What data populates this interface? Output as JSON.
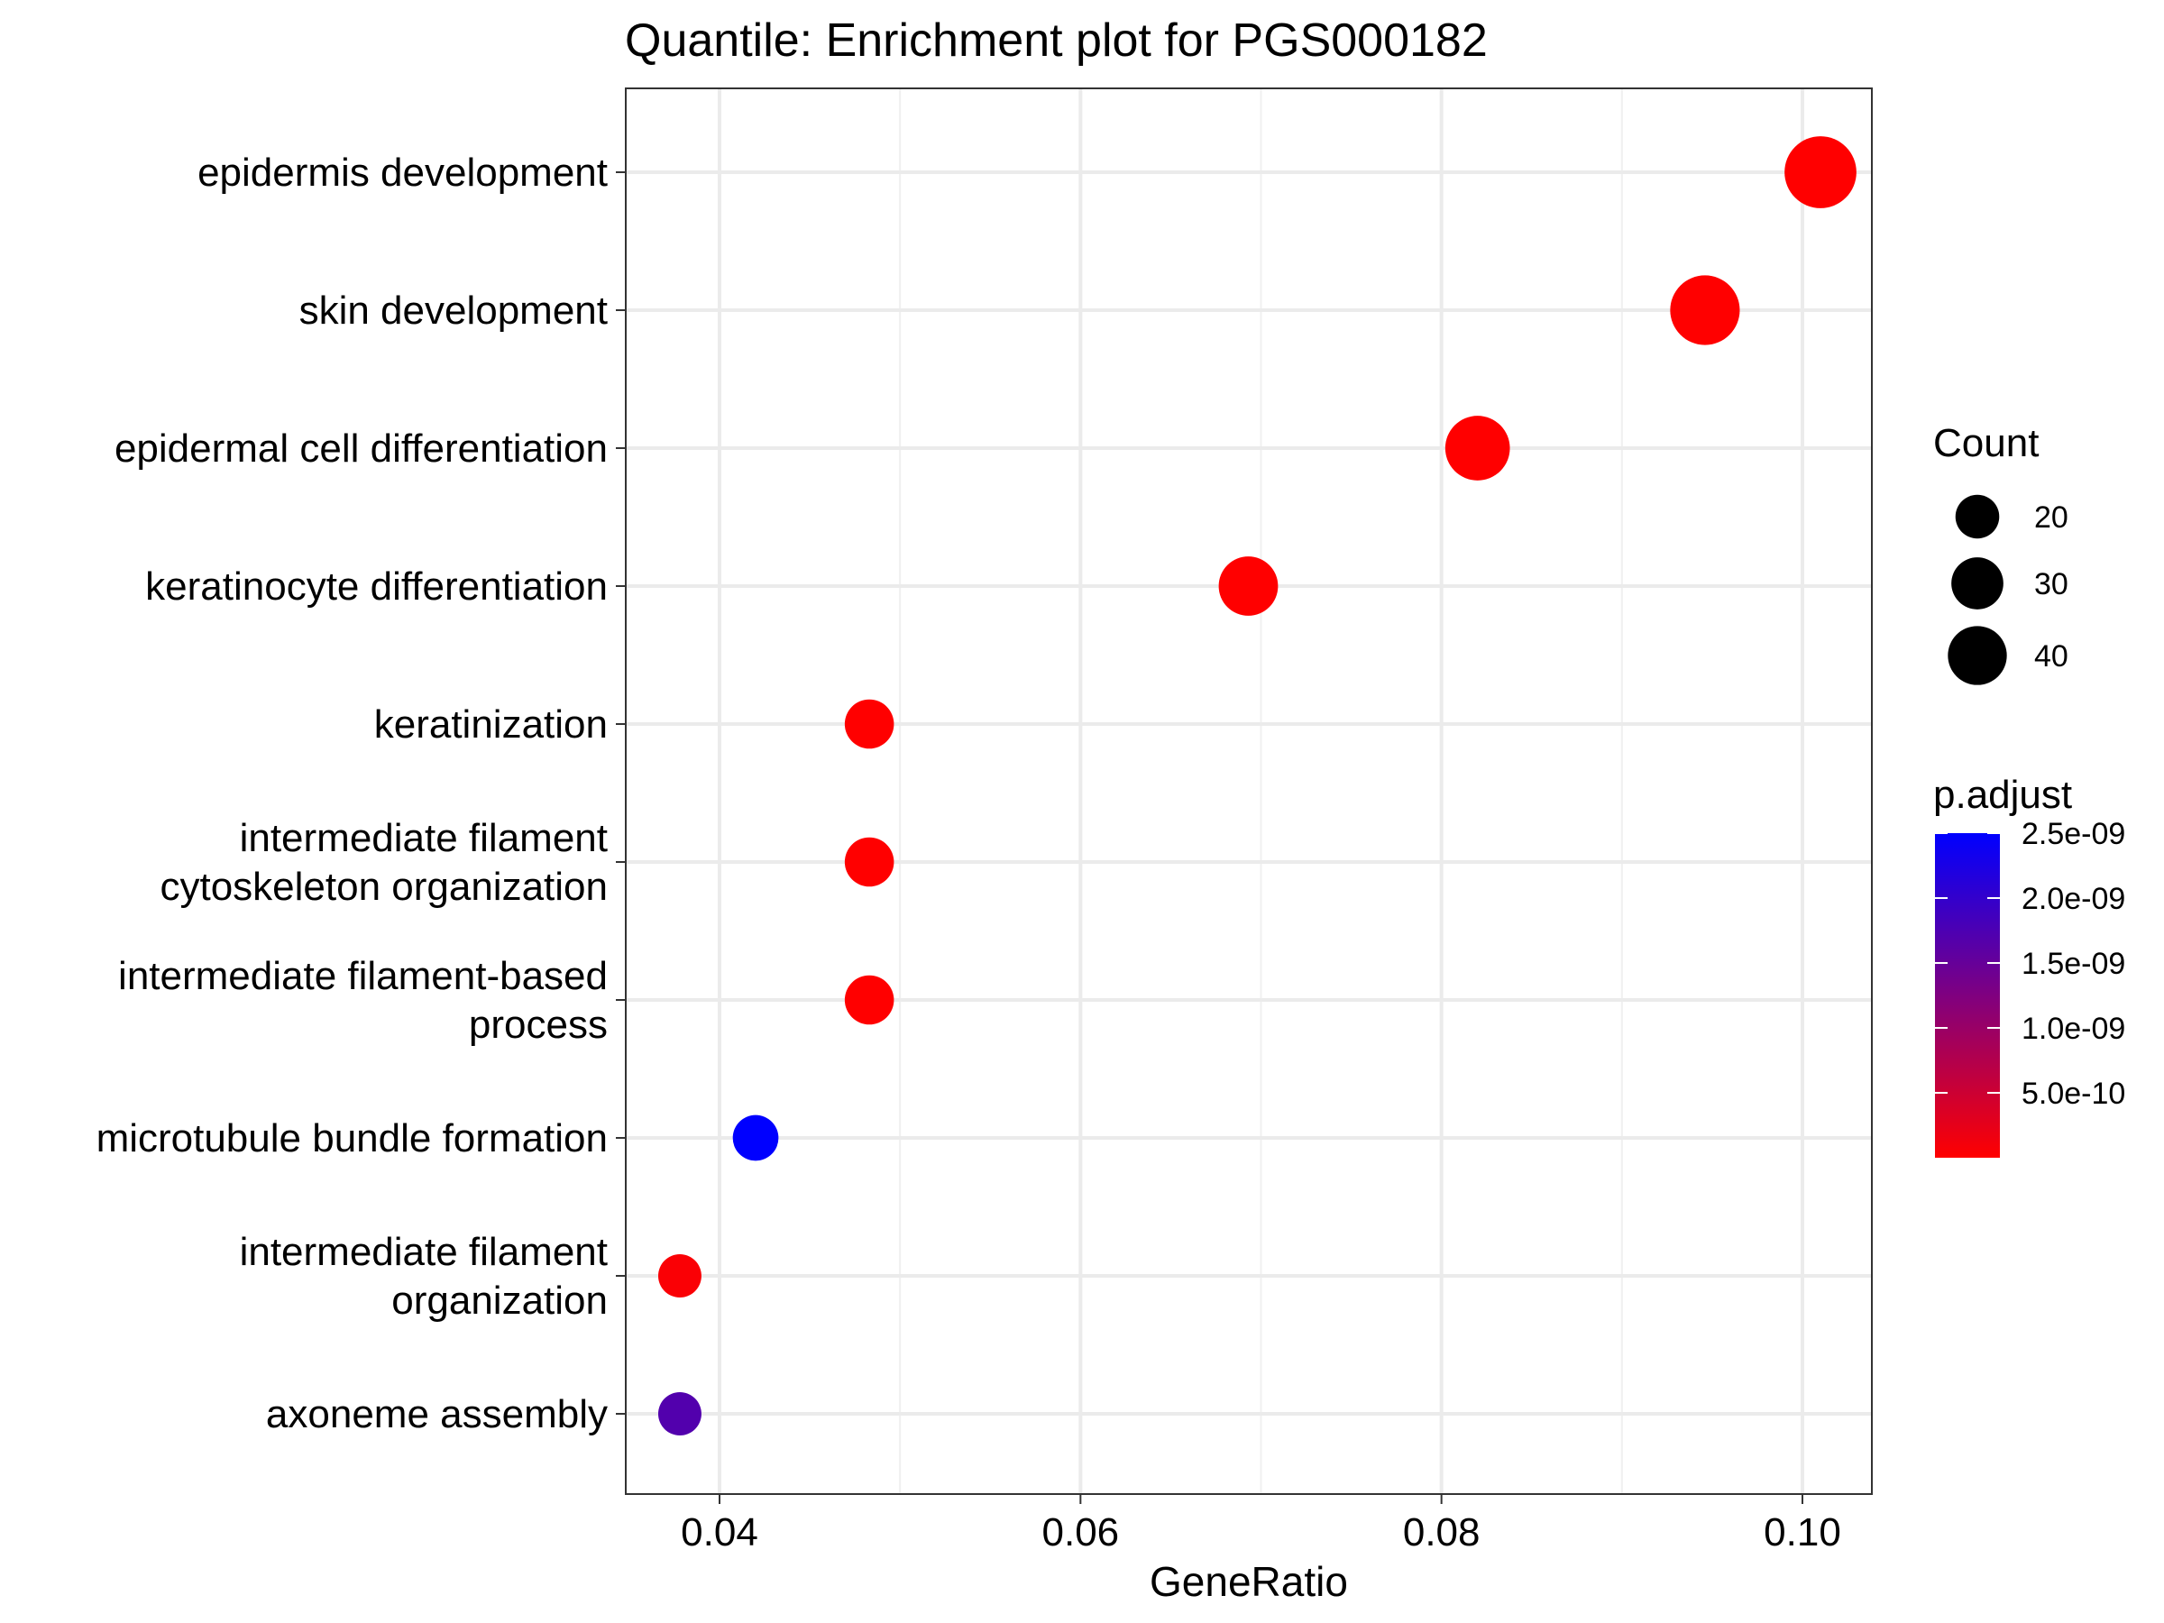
{
  "chart_data": {
    "type": "scatter",
    "title": "Quantile: Enrichment plot for PGS000182",
    "xlabel": "GeneRatio",
    "ylabel": "",
    "xlim": [
      0.035,
      0.1038
    ],
    "xticks": [
      0.04,
      0.06,
      0.08,
      0.1
    ],
    "xtick_labels": [
      "0.04",
      "0.06",
      "0.08",
      "0.10"
    ],
    "grid": true,
    "categories": [
      "epidermis development",
      "skin development",
      "epidermal cell differentiation",
      "keratinocyte differentiation",
      "keratinization",
      "intermediate filament cytoskeleton organization",
      "intermediate filament-based process",
      "microtubule bundle formation",
      "intermediate filament organization",
      "axoneme assembly"
    ],
    "category_lines": [
      [
        "epidermis development"
      ],
      [
        "skin development"
      ],
      [
        "epidermal cell differentiation"
      ],
      [
        "keratinocyte differentiation"
      ],
      [
        "keratinization"
      ],
      [
        "intermediate filament",
        "cytoskeleton organization"
      ],
      [
        "intermediate filament-based",
        "process"
      ],
      [
        "microtubule bundle formation"
      ],
      [
        "intermediate filament",
        "organization"
      ],
      [
        "axoneme assembly"
      ]
    ],
    "points": [
      {
        "term": "epidermis development",
        "gene_ratio": 0.101,
        "count": 47,
        "p_adjust": 1e-15
      },
      {
        "term": "skin development",
        "gene_ratio": 0.0946,
        "count": 44,
        "p_adjust": 1e-14
      },
      {
        "term": "epidermal cell differentiation",
        "gene_ratio": 0.082,
        "count": 38,
        "p_adjust": 1e-15
      },
      {
        "term": "keratinocyte differentiation",
        "gene_ratio": 0.0693,
        "count": 32,
        "p_adjust": 1e-14
      },
      {
        "term": "keratinization",
        "gene_ratio": 0.0483,
        "count": 22,
        "p_adjust": 1e-13
      },
      {
        "term": "intermediate filament cytoskeleton organization",
        "gene_ratio": 0.0483,
        "count": 22,
        "p_adjust": 1e-12
      },
      {
        "term": "intermediate filament-based process",
        "gene_ratio": 0.0483,
        "count": 22,
        "p_adjust": 1e-12
      },
      {
        "term": "microtubule bundle formation",
        "gene_ratio": 0.042,
        "count": 19,
        "p_adjust": 2.5e-09
      },
      {
        "term": "intermediate filament organization",
        "gene_ratio": 0.0378,
        "count": 17,
        "p_adjust": 5e-11
      },
      {
        "term": "axoneme assembly",
        "gene_ratio": 0.0378,
        "count": 17,
        "p_adjust": 1.7e-09
      }
    ],
    "size_legend": {
      "title": "Count",
      "values": [
        20,
        30,
        40
      ],
      "labels": [
        "20",
        "30",
        "40"
      ]
    },
    "color_legend": {
      "title": "p.adjust",
      "range": [
        1e-15,
        2.5e-09
      ],
      "low_color": "#FF0000",
      "high_color": "#0000FF",
      "ticks": [
        2.5e-09,
        2e-09,
        1.5e-09,
        1e-09,
        5e-10
      ],
      "tick_labels": [
        "2.5e-09",
        "2.0e-09",
        "1.5e-09",
        "1.0e-09",
        "5.0e-10"
      ]
    },
    "legend_position": "right"
  }
}
